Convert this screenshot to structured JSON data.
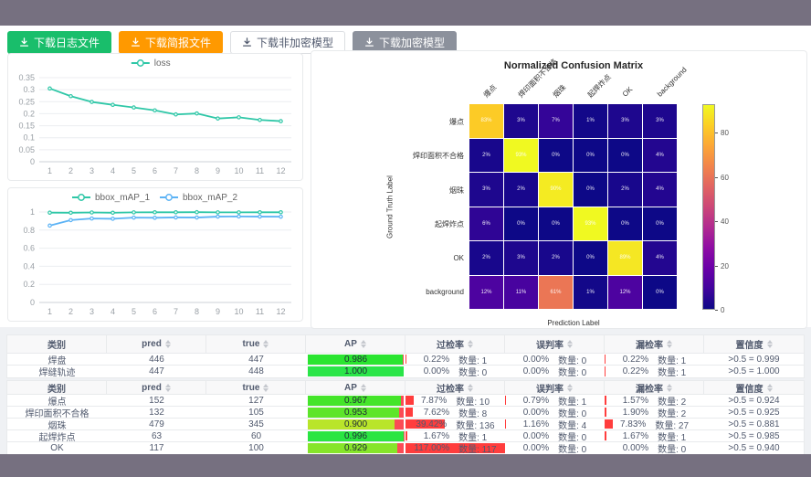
{
  "toolbar": {
    "buttons": [
      {
        "label": "下载日志文件",
        "variant": "success",
        "name": "download-log-button"
      },
      {
        "label": "下载简报文件",
        "variant": "warning",
        "name": "download-brief-button"
      },
      {
        "label": "下载非加密模型",
        "variant": "default",
        "name": "download-unencrypted-model-button"
      },
      {
        "label": "下载加密模型",
        "variant": "gray",
        "name": "download-encrypted-model-button"
      }
    ]
  },
  "colors": {
    "frame": "#767080",
    "success": "#19be6b",
    "warning": "#ff9900",
    "teal_series": "#2fc7a7",
    "blue_series": "#5cb3f5",
    "rate_bar_red": "#ff3d3d",
    "ap_rest_red": "#fb4b55"
  },
  "chart_data": [
    {
      "type": "line",
      "title": "loss",
      "x": [
        1,
        2,
        3,
        4,
        5,
        6,
        7,
        8,
        9,
        10,
        11,
        12
      ],
      "series": [
        {
          "name": "loss",
          "color": "#2fc7a7",
          "values": [
            0.305,
            0.273,
            0.249,
            0.237,
            0.226,
            0.214,
            0.197,
            0.201,
            0.18,
            0.185,
            0.174,
            0.169
          ]
        }
      ],
      "ylim": [
        0,
        0.35
      ],
      "yticks": [
        0,
        0.05,
        0.1,
        0.15,
        0.2,
        0.25,
        0.3,
        0.35
      ],
      "xlabel": "",
      "ylabel": "",
      "legend_position": "top",
      "grid": true
    },
    {
      "type": "line",
      "title": "bbox_mAP",
      "x": [
        1,
        2,
        3,
        4,
        5,
        6,
        7,
        8,
        9,
        10,
        11,
        12
      ],
      "series": [
        {
          "name": "bbox_mAP_1",
          "color": "#2fc7a7",
          "values": [
            0.993,
            0.992,
            0.995,
            0.992,
            0.996,
            0.997,
            0.997,
            0.998,
            0.996,
            0.996,
            0.997,
            0.997
          ]
        },
        {
          "name": "bbox_mAP_2",
          "color": "#5cb3f5",
          "values": [
            0.85,
            0.91,
            0.928,
            0.925,
            0.938,
            0.936,
            0.94,
            0.939,
            0.949,
            0.951,
            0.949,
            0.948
          ]
        }
      ],
      "ylim": [
        0,
        1
      ],
      "yticks": [
        0,
        0.2,
        0.4,
        0.6,
        0.8,
        1
      ],
      "xlabel": "",
      "ylabel": "",
      "legend_position": "top",
      "grid": true
    },
    {
      "type": "heatmap",
      "title": "Normalized Confusion Matrix",
      "xlabel": "Prediction Label",
      "ylabel": "Ground Truth Label",
      "labels": [
        "爆点",
        "焊印面积不合格",
        "烟珠",
        "起焊炸点",
        "OK",
        "background"
      ],
      "values": [
        [
          83,
          3,
          7,
          1,
          3,
          3
        ],
        [
          2,
          93,
          0,
          0,
          0,
          4
        ],
        [
          3,
          2,
          90,
          0,
          2,
          4
        ],
        [
          6,
          0,
          0,
          93,
          0,
          0
        ],
        [
          2,
          3,
          2,
          0,
          89,
          4
        ],
        [
          12,
          11,
          61,
          1,
          12,
          0
        ]
      ],
      "unit": "%",
      "vmax": 93,
      "colormap": "plasma",
      "colorbar_ticks": [
        0,
        20,
        40,
        60,
        80
      ],
      "legend_position": "right"
    }
  ],
  "tables": [
    {
      "columns": [
        {
          "label": "类别",
          "sortable": false
        },
        {
          "label": "pred",
          "sortable": true
        },
        {
          "label": "true",
          "sortable": true
        },
        {
          "label": "AP",
          "sortable": true
        },
        {
          "label": "过检率",
          "sortable": true
        },
        {
          "label": "误判率",
          "sortable": true
        },
        {
          "label": "漏检率",
          "sortable": true
        },
        {
          "label": "置信度",
          "sortable": true
        }
      ],
      "rows": [
        {
          "class": "焊盘",
          "pred": "446",
          "true": "447",
          "ap": "0.986",
          "ap_value": 0.986,
          "over_pct": "0.22%",
          "over_value": 0.22,
          "over_count": "数量: 1",
          "mis_pct": "0.00%",
          "mis_value": 0,
          "mis_count": "数量: 0",
          "miss_pct": "0.22%",
          "miss_value": 0.22,
          "miss_count": "数量: 1",
          "conf": ">0.5 = 0.999"
        },
        {
          "class": "焊缝轨迹",
          "pred": "447",
          "true": "448",
          "ap": "1.000",
          "ap_value": 1.0,
          "over_pct": "0.00%",
          "over_value": 0,
          "over_count": "数量: 0",
          "mis_pct": "0.00%",
          "mis_value": 0,
          "mis_count": "数量: 0",
          "miss_pct": "0.22%",
          "miss_value": 0.22,
          "miss_count": "数量: 1",
          "conf": ">0.5 = 1.000"
        }
      ]
    },
    {
      "columns": [
        {
          "label": "类别",
          "sortable": false
        },
        {
          "label": "pred",
          "sortable": true
        },
        {
          "label": "true",
          "sortable": true
        },
        {
          "label": "AP",
          "sortable": true
        },
        {
          "label": "过检率",
          "sortable": true
        },
        {
          "label": "误判率",
          "sortable": true
        },
        {
          "label": "漏检率",
          "sortable": true
        },
        {
          "label": "置信度",
          "sortable": true
        }
      ],
      "rows": [
        {
          "class": "爆点",
          "pred": "152",
          "true": "127",
          "ap": "0.967",
          "ap_value": 0.967,
          "over_pct": "7.87%",
          "over_value": 7.87,
          "over_count": "数量: 10",
          "mis_pct": "0.79%",
          "mis_value": 0.79,
          "mis_count": "数量: 1",
          "miss_pct": "1.57%",
          "miss_value": 1.57,
          "miss_count": "数量: 2",
          "conf": ">0.5 = 0.924"
        },
        {
          "class": "焊印面积不合格",
          "pred": "132",
          "true": "105",
          "ap": "0.953",
          "ap_value": 0.953,
          "over_pct": "7.62%",
          "over_value": 7.62,
          "over_count": "数量: 8",
          "mis_pct": "0.00%",
          "mis_value": 0,
          "mis_count": "数量: 0",
          "miss_pct": "1.90%",
          "miss_value": 1.9,
          "miss_count": "数量: 2",
          "conf": ">0.5 = 0.925"
        },
        {
          "class": "烟珠",
          "pred": "479",
          "true": "345",
          "ap": "0.900",
          "ap_value": 0.9,
          "over_pct": "39.42%",
          "over_value": 39.42,
          "over_count": "数量: 136",
          "mis_pct": "1.16%",
          "mis_value": 1.16,
          "mis_count": "数量: 4",
          "miss_pct": "7.83%",
          "miss_value": 7.83,
          "miss_count": "数量: 27",
          "conf": ">0.5 = 0.881"
        },
        {
          "class": "起焊炸点",
          "pred": "63",
          "true": "60",
          "ap": "0.996",
          "ap_value": 0.996,
          "over_pct": "1.67%",
          "over_value": 1.67,
          "over_count": "数量: 1",
          "mis_pct": "0.00%",
          "mis_value": 0,
          "mis_count": "数量: 0",
          "miss_pct": "1.67%",
          "miss_value": 1.67,
          "miss_count": "数量: 1",
          "conf": ">0.5 = 0.985"
        },
        {
          "class": "OK",
          "pred": "117",
          "true": "100",
          "ap": "0.929",
          "ap_value": 0.929,
          "over_pct": "117.00%",
          "over_value": 117,
          "over_count": "数量: 117",
          "mis_pct": "0.00%",
          "mis_value": 0,
          "mis_count": "数量: 0",
          "miss_pct": "0.00%",
          "miss_value": 0,
          "miss_count": "数量: 0",
          "conf": ">0.5 = 0.940"
        }
      ]
    }
  ]
}
